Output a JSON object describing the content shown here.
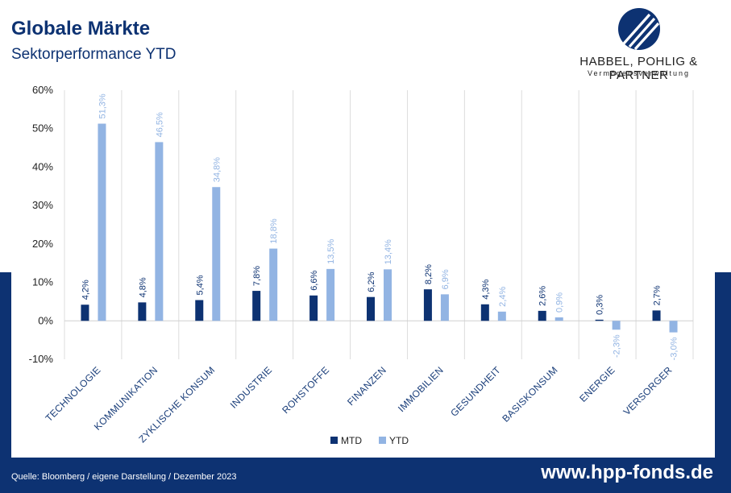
{
  "header": {
    "title": "Globale Märkte",
    "subtitle": "Sektorperformance YTD"
  },
  "logo": {
    "name": "HABBEL, POHLIG & PARTNER",
    "sub": "Vermögensverwaltung"
  },
  "footer": {
    "source": "Quelle: Bloomberg / eigene Darstellung / Dezember 2023",
    "url": "www.hpp-fonds.de"
  },
  "colors": {
    "navy": "#0d3272",
    "mtd": "#0d3272",
    "ytd": "#92b4e3"
  },
  "chart_data": {
    "type": "bar",
    "categories": [
      "TECHNOLOGIE",
      "KOMMUNIKATION",
      "ZYKLISCHE KONSUM",
      "INDUSTRIE",
      "ROHSTOFFE",
      "FINANZEN",
      "IMMOBILIEN",
      "GESUNDHEIT",
      "BASISKONSUM",
      "ENERGIE",
      "VERSORGER"
    ],
    "series": [
      {
        "name": "MTD",
        "values": [
          4.2,
          4.8,
          5.4,
          7.8,
          6.6,
          6.2,
          8.2,
          4.3,
          2.6,
          0.3,
          2.7
        ],
        "labels": [
          "4,2%",
          "4,8%",
          "5,4%",
          "7,8%",
          "6,6%",
          "6,2%",
          "8,2%",
          "4,3%",
          "2,6%",
          "0,3%",
          "2,7%"
        ]
      },
      {
        "name": "YTD",
        "values": [
          51.3,
          46.5,
          34.8,
          18.8,
          13.5,
          13.4,
          6.9,
          2.4,
          0.9,
          -2.3,
          -3.0
        ],
        "labels": [
          "51,3%",
          "46,5%",
          "34,8%",
          "18,8%",
          "13,5%",
          "13,4%",
          "6,9%",
          "2,4%",
          "0,9%",
          "-2,3%",
          "-3,0%"
        ]
      }
    ],
    "yticks": [
      -10,
      0,
      10,
      20,
      30,
      40,
      50,
      60
    ],
    "ytick_labels": [
      "-10%",
      "0%",
      "10%",
      "20%",
      "30%",
      "40%",
      "50%",
      "60%"
    ],
    "ylim": [
      -10,
      60
    ],
    "grid": "vertical separators",
    "legend": "bottom-center"
  }
}
